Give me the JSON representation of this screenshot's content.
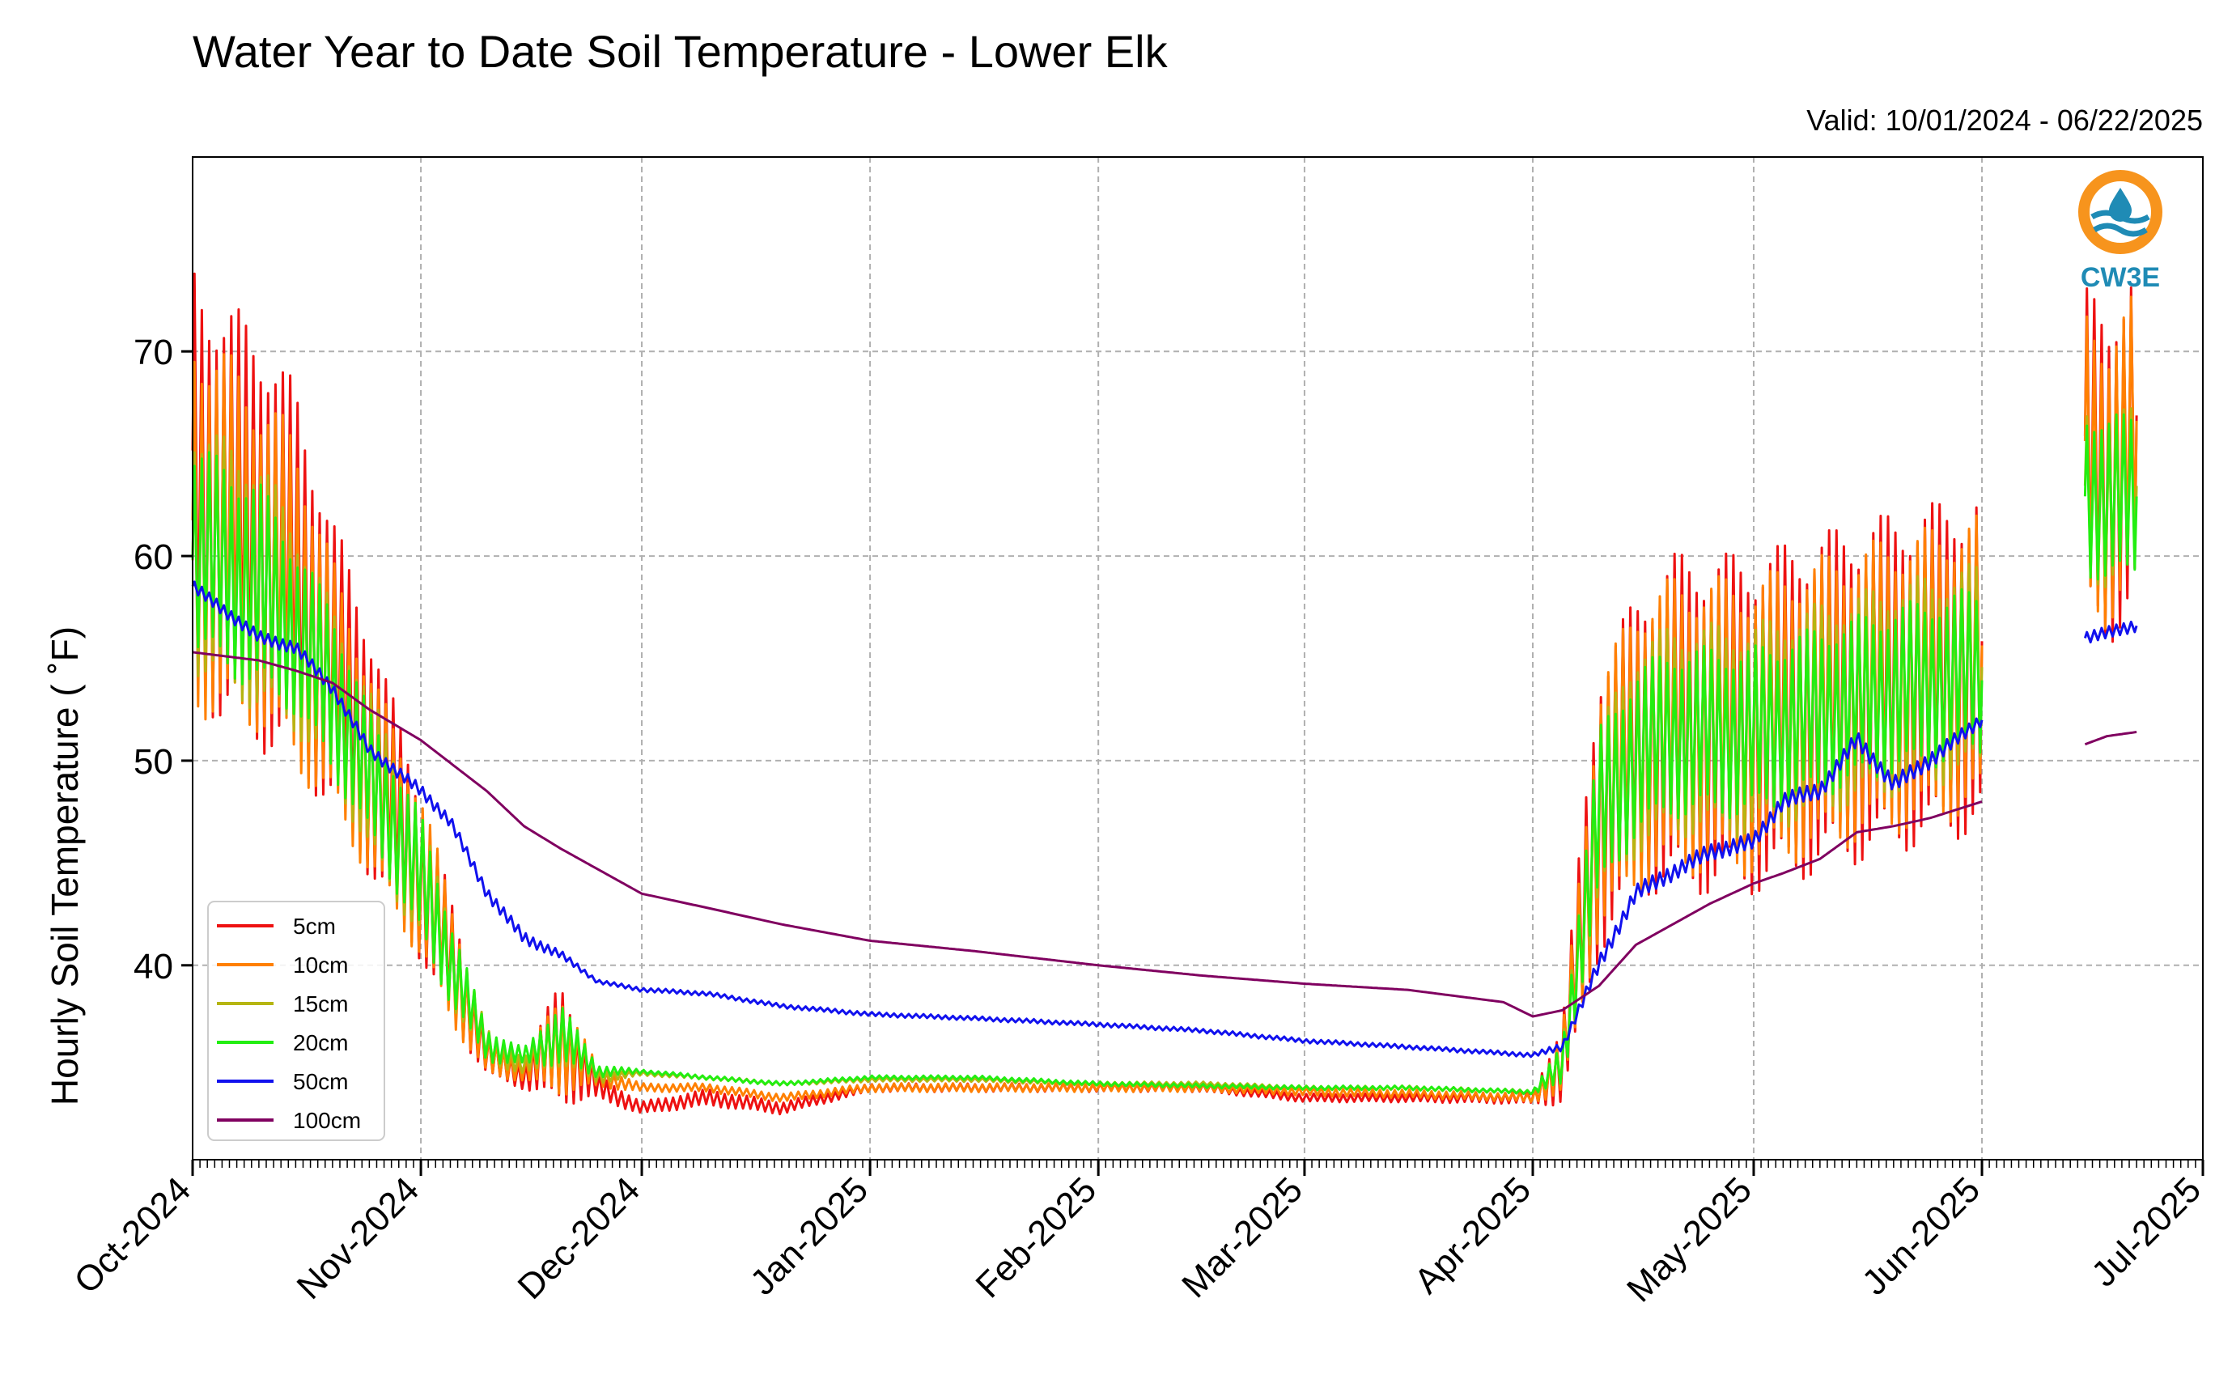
{
  "chart_data": {
    "type": "line",
    "title": "Water Year to Date Soil Temperature - Lower Elk",
    "subtitle": "Valid: 10/01/2024 - 06/22/2025",
    "ylabel": "Hourly Soil Temperature ( ˚F)",
    "xlabel": "",
    "ylim": [
      30.5,
      79.5
    ],
    "xlim": [
      "2024-10-01",
      "2025-07-01"
    ],
    "yticks": [
      40,
      50,
      60,
      70
    ],
    "ytick_labels": [
      "40",
      "50",
      "60",
      "70"
    ],
    "xticks": [
      "2024-10-01",
      "2024-11-01",
      "2024-12-01",
      "2025-01-01",
      "2025-02-01",
      "2025-03-01",
      "2025-04-01",
      "2025-05-01",
      "2025-06-01",
      "2025-07-01"
    ],
    "xtick_labels": [
      "Oct-2024",
      "Nov-2024",
      "Dec-2024",
      "Jan-2025",
      "Feb-2025",
      "Mar-2025",
      "Apr-2025",
      "May-2025",
      "Jun-2025",
      "Jul-2025"
    ],
    "grid": true,
    "legend_position": "lower-left",
    "logo_text": "CW3E",
    "logo_colors": {
      "ring": "#f7941d",
      "waves": "#1f8bb5",
      "text": "#1f8bb5"
    },
    "series": [
      {
        "name": "5cm",
        "color": "#ee1111",
        "segments": [
          {
            "x": [
              "2024-10-01",
              "2024-10-05",
              "2024-10-10",
              "2024-10-15",
              "2024-10-20",
              "2024-10-25",
              "2024-11-01",
              "2024-11-05",
              "2024-11-10",
              "2024-11-15",
              "2024-11-20",
              "2024-11-25",
              "2024-12-01",
              "2024-12-10",
              "2024-12-20",
              "2025-01-01",
              "2025-01-15",
              "2025-02-01",
              "2025-02-15",
              "2025-03-01",
              "2025-03-15",
              "2025-04-01",
              "2025-04-05",
              "2025-04-10",
              "2025-04-15",
              "2025-04-20",
              "2025-05-01",
              "2025-05-10",
              "2025-05-20",
              "2025-06-01"
            ],
            "y": [
              63,
              61,
              60,
              58,
              54,
              50,
              44,
              40,
              35.5,
              34.5,
              36,
              34,
              33,
              33.5,
              33,
              34,
              34,
              34,
              34,
              33.5,
              33.5,
              33.5,
              35,
              47,
              50,
              51,
              51,
              52,
              53,
              54
            ],
            "amp": [
              10,
              10,
              10,
              9,
              7,
              6,
              4,
              3,
              1,
              0.6,
              3,
              0.6,
              0.3,
              0.4,
              0.3,
              0.2,
              0.2,
              0.2,
              0.2,
              0.2,
              0.2,
              0.3,
              2,
              7,
              7,
              8,
              8,
              8,
              8,
              8
            ]
          },
          {
            "x": [
              "2025-06-15",
              "2025-06-18",
              "2025-06-22"
            ],
            "y": [
              64,
              63,
              65
            ],
            "amp": [
              8,
              8,
              8
            ]
          }
        ]
      },
      {
        "name": "10cm",
        "color": "#ff8000",
        "segments": [
          {
            "x": [
              "2024-10-01",
              "2024-10-05",
              "2024-10-10",
              "2024-10-15",
              "2024-10-20",
              "2024-10-25",
              "2024-11-01",
              "2024-11-05",
              "2024-11-10",
              "2024-11-15",
              "2024-11-20",
              "2024-11-25",
              "2024-12-01",
              "2024-12-10",
              "2024-12-20",
              "2025-01-01",
              "2025-01-15",
              "2025-02-01",
              "2025-02-15",
              "2025-03-01",
              "2025-03-15",
              "2025-04-01",
              "2025-04-05",
              "2025-04-10",
              "2025-04-15",
              "2025-04-20",
              "2025-05-01",
              "2025-05-10",
              "2025-05-20",
              "2025-06-01"
            ],
            "y": [
              61,
              60,
              59,
              57,
              53,
              49,
              44,
              40,
              35.5,
              34.8,
              36,
              34.5,
              34,
              34,
              33.5,
              34,
              34,
              34,
              34,
              33.8,
              33.7,
              33.5,
              35,
              47,
              50,
              51,
              51,
              52,
              53,
              54
            ],
            "amp": [
              9,
              9,
              8,
              8,
              6,
              5,
              4,
              3,
              1,
              0.5,
              2.5,
              0.5,
              0.2,
              0.2,
              0.2,
              0.2,
              0.2,
              0.2,
              0.2,
              0.2,
              0.2,
              0.2,
              1.5,
              6,
              7,
              7,
              7,
              7,
              7,
              7
            ]
          },
          {
            "x": [
              "2025-06-15",
              "2025-06-18",
              "2025-06-22"
            ],
            "y": [
              64,
              63,
              65
            ],
            "amp": [
              7,
              7,
              7
            ]
          }
        ]
      },
      {
        "name": "15cm",
        "color": "#b5b512",
        "segments": [
          {
            "x": [
              "2024-10-01",
              "2024-10-05",
              "2024-10-10",
              "2024-10-15",
              "2024-10-20",
              "2024-10-25",
              "2024-11-01",
              "2024-11-05",
              "2024-11-10",
              "2024-11-15",
              "2024-11-20",
              "2024-11-25",
              "2024-12-01",
              "2024-12-10",
              "2024-12-20",
              "2025-01-01",
              "2025-01-15",
              "2025-02-01",
              "2025-02-15",
              "2025-03-01",
              "2025-03-15",
              "2025-04-01",
              "2025-04-05",
              "2025-04-10",
              "2025-04-15",
              "2025-04-20",
              "2025-05-01",
              "2025-05-10",
              "2025-05-20",
              "2025-06-01"
            ],
            "y": [
              60,
              59,
              58,
              56,
              53,
              49,
              44,
              40,
              36,
              35,
              36.5,
              34.5,
              34.7,
              34.5,
              34.2,
              34.4,
              34.4,
              34.2,
              34.2,
              34,
              34,
              33.8,
              35,
              47,
              50,
              51,
              51,
              52,
              53,
              54
            ],
            "amp": [
              6,
              6,
              6,
              5,
              4,
              4,
              3,
              2,
              0.8,
              0.4,
              1.5,
              0.3,
              0.1,
              0.1,
              0.1,
              0.1,
              0.1,
              0.1,
              0.1,
              0.1,
              0.1,
              0.1,
              1,
              4,
              5,
              5,
              5,
              5,
              5,
              5
            ]
          },
          {
            "x": [
              "2025-06-15",
              "2025-06-18",
              "2025-06-22"
            ],
            "y": [
              63,
              62,
              63
            ],
            "amp": [
              4,
              4,
              4
            ]
          }
        ]
      },
      {
        "name": "20cm",
        "color": "#22ee11",
        "segments": [
          {
            "x": [
              "2024-10-01",
              "2024-10-05",
              "2024-10-10",
              "2024-10-15",
              "2024-10-20",
              "2024-10-25",
              "2024-11-01",
              "2024-11-05",
              "2024-11-10",
              "2024-11-15",
              "2024-11-20",
              "2024-11-25",
              "2024-12-01",
              "2024-12-10",
              "2024-12-20",
              "2025-01-01",
              "2025-01-15",
              "2025-02-01",
              "2025-02-15",
              "2025-03-01",
              "2025-03-15",
              "2025-04-01",
              "2025-04-05",
              "2025-04-10",
              "2025-04-15",
              "2025-04-20",
              "2025-05-01",
              "2025-05-10",
              "2025-05-20",
              "2025-06-01"
            ],
            "y": [
              60,
              59,
              58,
              56,
              53,
              49,
              44,
              40,
              36,
              35.5,
              36.5,
              34.8,
              34.8,
              34.5,
              34.2,
              34.5,
              34.5,
              34.2,
              34.1,
              34,
              34,
              33.8,
              35,
              47,
              50,
              51,
              51,
              52,
              53,
              54
            ],
            "amp": [
              5,
              5,
              5,
              4,
              4,
              3,
              3,
              2,
              0.8,
              0.4,
              1.5,
              0.3,
              0.1,
              0.1,
              0.1,
              0.1,
              0.1,
              0.1,
              0.1,
              0.1,
              0.1,
              0.1,
              1,
              4,
              4,
              4,
              4,
              4,
              4,
              4
            ]
          },
          {
            "x": [
              "2025-06-15",
              "2025-06-18",
              "2025-06-22"
            ],
            "y": [
              63,
              62,
              63
            ],
            "amp": [
              4,
              4,
              4
            ]
          }
        ]
      },
      {
        "name": "50cm",
        "color": "#1111ee",
        "segments": [
          {
            "x": [
              "2024-10-01",
              "2024-10-10",
              "2024-10-15",
              "2024-10-20",
              "2024-10-25",
              "2024-11-01",
              "2024-11-05",
              "2024-11-10",
              "2024-11-15",
              "2024-11-20",
              "2024-11-25",
              "2024-12-01",
              "2024-12-10",
              "2024-12-20",
              "2025-01-01",
              "2025-01-15",
              "2025-02-01",
              "2025-02-15",
              "2025-03-01",
              "2025-03-15",
              "2025-04-01",
              "2025-04-05",
              "2025-04-10",
              "2025-04-15",
              "2025-04-20",
              "2025-04-25",
              "2025-05-01",
              "2025-05-05",
              "2025-05-10",
              "2025-05-15",
              "2025-05-20",
              "2025-05-25",
              "2025-06-01"
            ],
            "y": [
              58.5,
              56,
              55.5,
              53.5,
              50.5,
              48.5,
              47,
              43.5,
              41.3,
              40.5,
              39.2,
              38.8,
              38.6,
              38,
              37.6,
              37.4,
              37.1,
              36.8,
              36.3,
              36,
              35.6,
              36,
              40,
              43.5,
              44.5,
              45.5,
              46,
              48,
              48.5,
              51,
              48.8,
              50,
              52
            ],
            "amp": [
              0.3,
              0.3,
              0.3,
              0.3,
              0.3,
              0.3,
              0.3,
              0.3,
              0.3,
              0.2,
              0.1,
              0.1,
              0.1,
              0.1,
              0.1,
              0.1,
              0.1,
              0.1,
              0.1,
              0.1,
              0.1,
              0.2,
              0.4,
              0.4,
              0.4,
              0.4,
              0.4,
              0.4,
              0.4,
              0.4,
              0.4,
              0.4,
              0.3
            ]
          },
          {
            "x": [
              "2025-06-15",
              "2025-06-18",
              "2025-06-22"
            ],
            "y": [
              56,
              56.2,
              56.6
            ],
            "amp": [
              0.3,
              0.3,
              0.3
            ]
          }
        ]
      },
      {
        "name": "100cm",
        "color": "#800060",
        "segments": [
          {
            "x": [
              "2024-10-01",
              "2024-10-10",
              "2024-10-15",
              "2024-10-20",
              "2024-10-25",
              "2024-11-01",
              "2024-11-10",
              "2024-11-15",
              "2024-11-20",
              "2024-12-01",
              "2024-12-10",
              "2024-12-20",
              "2025-01-01",
              "2025-01-15",
              "2025-02-01",
              "2025-02-15",
              "2025-03-01",
              "2025-03-15",
              "2025-03-28",
              "2025-04-01",
              "2025-04-05",
              "2025-04-10",
              "2025-04-15",
              "2025-04-20",
              "2025-04-25",
              "2025-05-01",
              "2025-05-05",
              "2025-05-10",
              "2025-05-15",
              "2025-05-20",
              "2025-05-25",
              "2025-06-01"
            ],
            "y": [
              55.3,
              54.9,
              54.4,
              53.8,
              52.5,
              51,
              48.5,
              46.8,
              45.7,
              43.5,
              42.8,
              42,
              41.2,
              40.7,
              40,
              39.5,
              39.1,
              38.8,
              38.2,
              37.5,
              37.8,
              39,
              41,
              42,
              43,
              44,
              44.5,
              45.2,
              46.5,
              46.8,
              47.2,
              48
            ],
            "amp": [
              0,
              0,
              0,
              0,
              0,
              0,
              0,
              0,
              0,
              0,
              0,
              0,
              0,
              0,
              0,
              0,
              0,
              0,
              0,
              0,
              0,
              0,
              0,
              0,
              0,
              0,
              0,
              0,
              0,
              0,
              0,
              0
            ]
          },
          {
            "x": [
              "2025-06-15",
              "2025-06-18",
              "2025-06-22"
            ],
            "y": [
              50.8,
              51.2,
              51.4
            ],
            "amp": [
              0,
              0,
              0
            ]
          }
        ]
      }
    ]
  }
}
